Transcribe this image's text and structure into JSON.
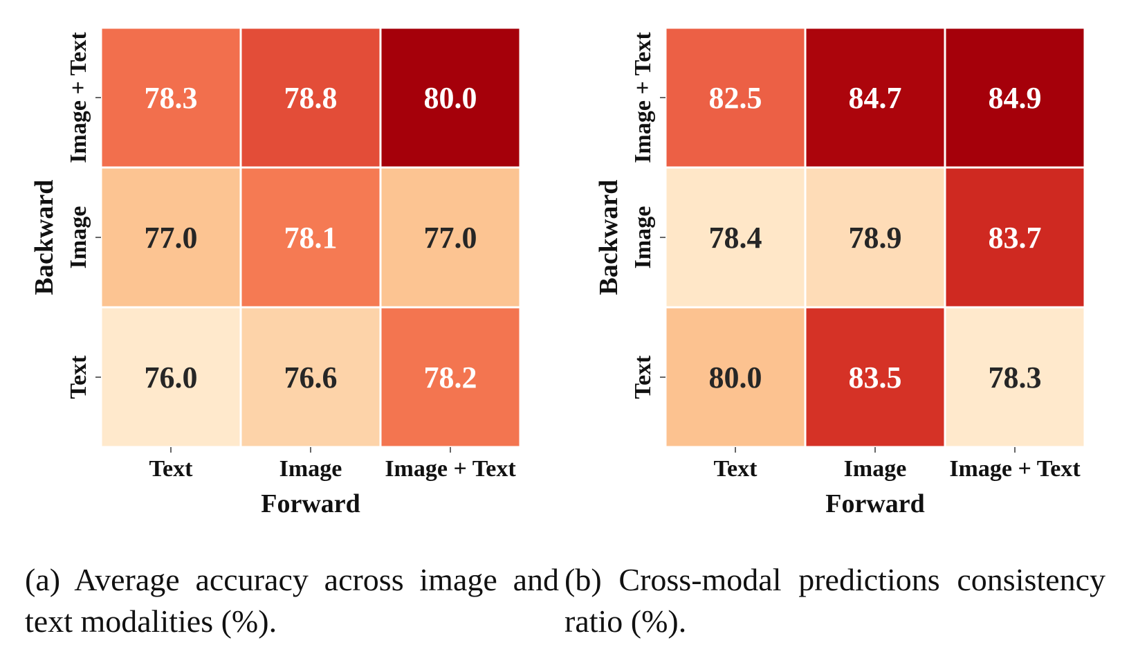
{
  "chart_data": [
    {
      "type": "heatmap",
      "title": "",
      "xlabel": "Forward",
      "ylabel": "Backward",
      "x_categories": [
        "Text",
        "Image",
        "Image + Text"
      ],
      "y_categories": [
        "Image + Text",
        "Image",
        "Text"
      ],
      "values": [
        [
          78.3,
          78.8,
          80.0
        ],
        [
          77.0,
          78.1,
          77.0
        ],
        [
          76.0,
          76.6,
          78.2
        ]
      ],
      "value_range": [
        76.0,
        80.0
      ],
      "colormap": "Oranges-Reds",
      "caption": "(a) Average accuracy across image and text modalities (%)."
    },
    {
      "type": "heatmap",
      "title": "",
      "xlabel": "Forward",
      "ylabel": "Backward",
      "x_categories": [
        "Text",
        "Image",
        "Image + Text"
      ],
      "y_categories": [
        "Image + Text",
        "Image",
        "Text"
      ],
      "values": [
        [
          82.5,
          84.7,
          84.9
        ],
        [
          78.4,
          78.9,
          83.7
        ],
        [
          80.0,
          83.5,
          78.3
        ]
      ],
      "value_range": [
        78.3,
        84.9
      ],
      "colormap": "Oranges-Reds",
      "caption": "(b) Cross-modal predictions consistency ratio (%)."
    }
  ]
}
